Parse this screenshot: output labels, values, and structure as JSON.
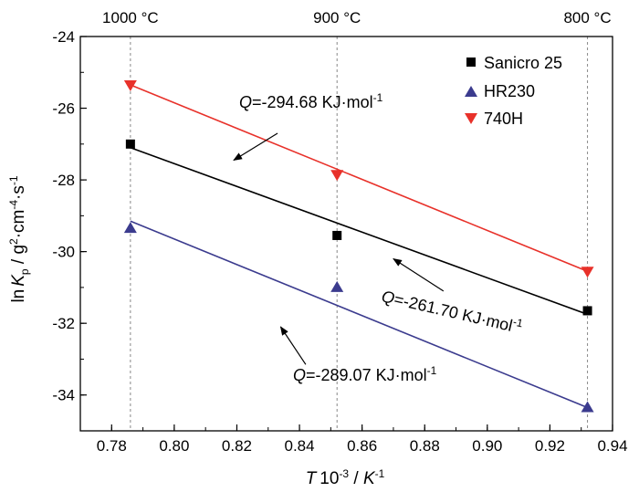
{
  "chart_data": {
    "type": "scatter",
    "title": "",
    "xlabel": {
      "main": "T",
      "exp": "-3",
      "mid": " / ",
      "unit": "K",
      "unit_exp": "-1"
    },
    "xlabel_prefix_text": "10",
    "ylabel": {
      "pre": "ln",
      "k": "K",
      "sub": "p",
      "mid": " / g",
      "sup1": "2",
      "mid2": "·cm",
      "sup2": "-4",
      "mid3": "·s",
      "sup3": "-1"
    },
    "xlim": [
      0.77,
      0.94
    ],
    "ylim": [
      -35.0,
      -24.0
    ],
    "xticks": [
      0.78,
      0.8,
      0.82,
      0.84,
      0.86,
      0.88,
      0.9,
      0.92,
      0.94
    ],
    "xtick_labels": [
      "0.78",
      "0.80",
      "0.82",
      "0.84",
      "0.86",
      "0.88",
      "0.90",
      "0.92",
      "0.94"
    ],
    "yticks": [
      -34,
      -32,
      -30,
      -28,
      -26,
      -24
    ],
    "ytick_labels": [
      "-34",
      "-32",
      "-30",
      "-28",
      "-26",
      "-24"
    ],
    "grid": false,
    "legend_position": "top-right",
    "reference_lines": [
      {
        "x": 0.786,
        "label": "1000 °C"
      },
      {
        "x": 0.852,
        "label": "900 °C"
      },
      {
        "x": 0.932,
        "label": "800 °C"
      }
    ],
    "series": [
      {
        "name": "Sanicro 25",
        "marker": "square",
        "color": "#000000",
        "x": [
          0.786,
          0.852,
          0.932
        ],
        "y": [
          -27.0,
          -29.55,
          -31.65
        ],
        "fit": {
          "x": [
            0.786,
            0.932
          ],
          "y": [
            -27.1,
            -31.75
          ]
        }
      },
      {
        "name": "HR230",
        "marker": "triangle-up",
        "color": "#3b3b8e",
        "x": [
          0.786,
          0.852,
          0.932
        ],
        "y": [
          -29.35,
          -31.0,
          -34.35
        ],
        "fit": {
          "x": [
            0.786,
            0.932
          ],
          "y": [
            -29.15,
            -34.35
          ]
        }
      },
      {
        "name": "740H",
        "marker": "triangle-down",
        "color": "#e8312a",
        "x": [
          0.786,
          0.852,
          0.932
        ],
        "y": [
          -25.35,
          -27.85,
          -30.55
        ],
        "fit": {
          "x": [
            0.786,
            0.932
          ],
          "y": [
            -25.35,
            -30.55
          ]
        }
      }
    ],
    "annotations": [
      {
        "q": "Q",
        "value": "=-294.68 KJ·mol",
        "exp": "-1",
        "arrow_from": [
          0.833,
          -26.7
        ],
        "arrow_to": [
          0.819,
          -27.45
        ]
      },
      {
        "q": "Q",
        "value": "=-261.70 KJ·mol",
        "exp": "-1",
        "arrow_from": [
          0.886,
          -31.1
        ],
        "arrow_to": [
          0.87,
          -30.2
        ]
      },
      {
        "q": "Q",
        "value": "=-289.07 KJ·mol",
        "exp": "-1",
        "arrow_from": [
          0.842,
          -33.15
        ],
        "arrow_to": [
          0.834,
          -32.1
        ]
      }
    ]
  }
}
